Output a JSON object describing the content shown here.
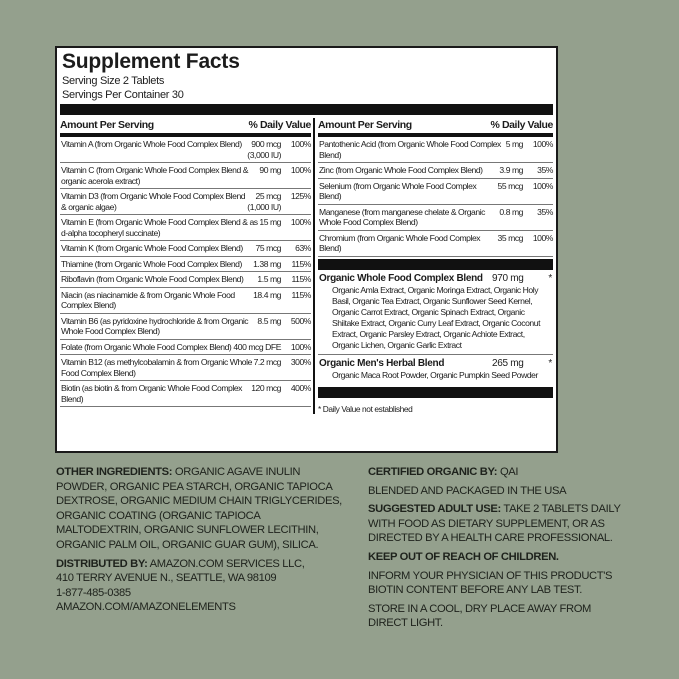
{
  "panel": {
    "title": "Supplement Facts",
    "serving_size": "Serving Size 2 Tablets",
    "servings_per_container": "Servings Per Container 30",
    "header": {
      "amount": "Amount Per Serving",
      "dv": "% Daily Value"
    },
    "left_rows": [
      {
        "name": "Vitamin A (from Organic Whole Food Complex Blend)",
        "amount": "900 mcg\n(3,000 IU)",
        "dv": "100%"
      },
      {
        "name": "Vitamin C (from Organic Whole Food Complex Blend & organic acerola extract)",
        "amount": "90 mg",
        "dv": "100%"
      },
      {
        "name": "Vitamin D3 (from Organic Whole Food Complex Blend & organic algae)",
        "amount": "25 mcg\n(1,000 IU)",
        "dv": "125%"
      },
      {
        "name": "Vitamin E (from Organic Whole Food Complex Blend & as d-alpha tocopheryl succinate)",
        "amount": "15 mg",
        "dv": "100%"
      },
      {
        "name": "Vitamin K (from Organic Whole Food Complex Blend)",
        "amount": "75 mcg",
        "dv": "63%"
      },
      {
        "name": "Thiamine (from Organic Whole Food Complex Blend)",
        "amount": "1.38 mg",
        "dv": "115%"
      },
      {
        "name": "Riboflavin (from Organic Whole Food Complex Blend)",
        "amount": "1.5 mg",
        "dv": "115%"
      },
      {
        "name": "Niacin (as niacinamide & from Organic Whole Food Complex Blend)",
        "amount": "18.4 mg",
        "dv": "115%"
      },
      {
        "name": "Vitamin B6 (as pyridoxine hydrochloride & from Organic Whole Food Complex Blend)",
        "amount": "8.5 mg",
        "dv": "500%"
      },
      {
        "name": "Folate (from Organic Whole Food Complex Blend)",
        "amount": "400 mcg DFE",
        "dv": "100%"
      },
      {
        "name": "Vitamin B12 (as methylcobalamin & from Organic Whole Food Complex Blend)",
        "amount": "7.2 mcg",
        "dv": "300%"
      },
      {
        "name": "Biotin (as biotin & from Organic Whole Food Complex Blend)",
        "amount": "120 mcg",
        "dv": "400%"
      }
    ],
    "right_rows": [
      {
        "name": "Pantothenic Acid (from Organic Whole Food Complex Blend)",
        "amount": "5 mg",
        "dv": "100%"
      },
      {
        "name": "Zinc (from Organic Whole Food Complex Blend)",
        "amount": "3.9 mg",
        "dv": "35%"
      },
      {
        "name": "Selenium (from Organic Whole Food Complex Blend)",
        "amount": "55 mcg",
        "dv": "100%"
      },
      {
        "name": "Manganese (from manganese chelate & Organic Whole Food Complex Blend)",
        "amount": "0.8 mg",
        "dv": "35%"
      },
      {
        "name": "Chromium (from Organic Whole Food Complex Blend)",
        "amount": "35 mcg",
        "dv": "100%"
      }
    ],
    "blends": [
      {
        "name": "Organic Whole Food Complex Blend",
        "amount": "970 mg",
        "dv": "*",
        "ingredients": "Organic Amla Extract, Organic Moringa Extract, Organic Holy Basil, Organic Tea Extract, Organic Sunflower Seed Kernel, Organic Carrot Extract, Organic Spinach Extract, Organic Shiitake Extract, Organic Curry Leaf Extract, Organic Coconut Extract, Organic Parsley Extract, Organic Achiote Extract, Organic Lichen, Organic Garlic Extract"
      },
      {
        "name": "Organic Men's Herbal Blend",
        "amount": "265 mg",
        "dv": "*",
        "ingredients": "Organic Maca Root Powder, Organic Pumpkin Seed Powder"
      }
    ],
    "footnote": "* Daily Value not established"
  },
  "bottom": {
    "other_label": "OTHER INGREDIENTS:",
    "other_text": " ORGANIC AGAVE INULIN POWDER, ORGANIC PEA STARCH, ORGANIC TAPIOCA DEXTROSE, ORGANIC MEDIUM CHAIN TRIGLYCERIDES, ORGANIC COATING (ORGANIC TAPIOCA MALTODEXTRIN, ORGANIC SUNFLOWER LECITHIN, ORGANIC PALM OIL, ORGANIC GUAR GUM), SILICA.",
    "dist_label": "DISTRIBUTED BY:",
    "dist_text": " AMAZON.COM SERVICES LLC,",
    "address": "410 TERRY AVENUE N., SEATTLE, WA 98109",
    "phone": "1-877-485-0385",
    "website": "AMAZON.COM/AMAZONELEMENTS",
    "cert_label": "CERTIFIED ORGANIC BY:",
    "cert_text": " QAI",
    "blended": "BLENDED AND PACKAGED IN THE USA",
    "use_label": "SUGGESTED ADULT USE:",
    "use_text": " TAKE 2 TABLETS DAILY WITH FOOD AS DIETARY SUPPLEMENT, OR AS DIRECTED BY A HEALTH CARE PROFESSIONAL.",
    "keep_out": "KEEP OUT OF REACH OF CHILDREN.",
    "biotin_warning": "INFORM YOUR PHYSICIAN OF THIS PRODUCT'S BIOTIN CONTENT BEFORE ANY LAB TEST.",
    "storage": "STORE IN A COOL, DRY PLACE AWAY FROM DIRECT LIGHT."
  },
  "colors": {
    "background": "#94a08d",
    "panel": "#ffffff",
    "ink": "#111111"
  }
}
